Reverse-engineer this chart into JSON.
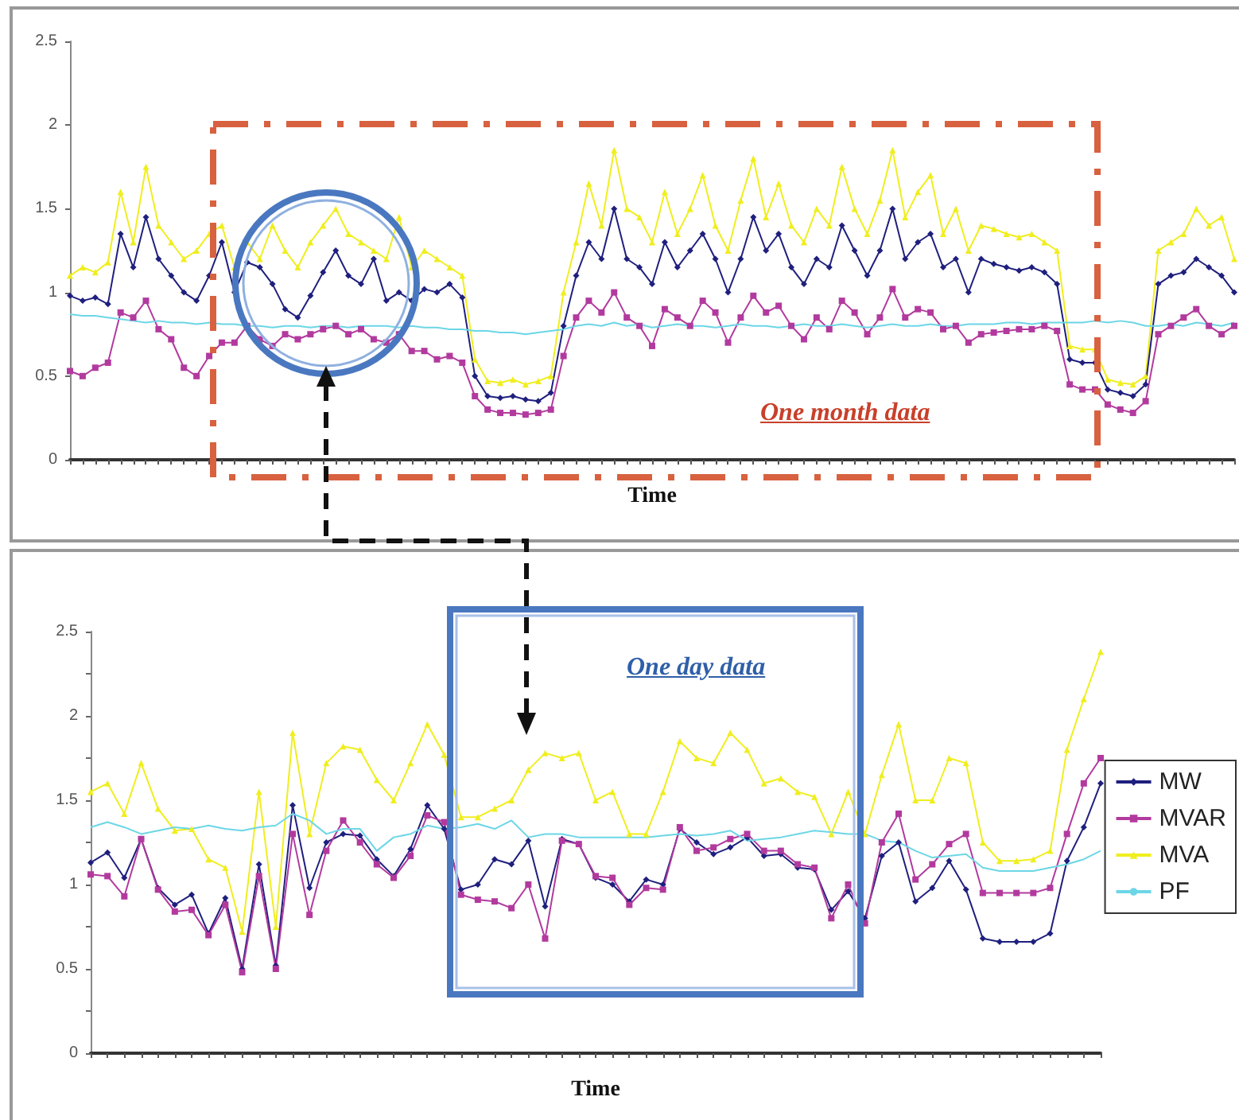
{
  "chart_data": [
    {
      "type": "line",
      "xlabel": "Time",
      "ylim": [
        0,
        2.5
      ],
      "yticks": [
        0,
        0.5,
        1,
        1.5,
        2,
        2.5
      ],
      "grid": false,
      "annotations": [
        "One month data"
      ],
      "categories": [
        null,
        null,
        null,
        null,
        null,
        null,
        null,
        null,
        null,
        null,
        null,
        null,
        null,
        null,
        null,
        null,
        null,
        null,
        null,
        null,
        null,
        null,
        null,
        null,
        null,
        null,
        null,
        null,
        null,
        null,
        null,
        null,
        null,
        null,
        null,
        null,
        null,
        null,
        null,
        null,
        null,
        null,
        null,
        null,
        null,
        null,
        null,
        null,
        null,
        null,
        null,
        null,
        null,
        null,
        null,
        null,
        null,
        null,
        null,
        null,
        null,
        null,
        null,
        null,
        null,
        null,
        null,
        null,
        null,
        null,
        null,
        null,
        null,
        null,
        null,
        null,
        null,
        null,
        null,
        null,
        null,
        null,
        null,
        null,
        null,
        null,
        null,
        null,
        null,
        null,
        null,
        null,
        null
      ],
      "series": [
        {
          "color": "#f0ee1e",
          "marker": "triangle",
          "values": [
            1.1,
            1.15,
            1.12,
            1.18,
            1.6,
            1.3,
            1.75,
            1.4,
            1.3,
            1.2,
            1.25,
            1.35,
            1.4,
            1.15,
            1.3,
            1.2,
            1.4,
            1.25,
            1.15,
            1.3,
            1.4,
            1.5,
            1.35,
            1.3,
            1.25,
            1.2,
            1.45,
            1.15,
            1.25,
            1.2,
            1.15,
            1.1,
            0.6,
            0.47,
            0.46,
            0.48,
            0.45,
            0.47,
            0.5,
            1.0,
            1.3,
            1.65,
            1.4,
            1.85,
            1.5,
            1.45,
            1.3,
            1.6,
            1.35,
            1.5,
            1.7,
            1.4,
            1.25,
            1.55,
            1.8,
            1.45,
            1.65,
            1.4,
            1.3,
            1.5,
            1.4,
            1.75,
            1.5,
            1.35,
            1.55,
            1.85,
            1.45,
            1.6,
            1.7,
            1.35,
            1.5,
            1.25,
            1.4,
            1.38,
            1.35,
            1.33,
            1.35,
            1.3,
            1.25,
            0.68,
            0.66,
            0.66,
            0.48,
            0.46,
            0.45,
            0.5,
            1.25,
            1.3,
            1.35,
            1.5,
            1.4,
            1.45,
            1.2
          ]
        },
        {
          "color": "#1f1f7e",
          "marker": "diamond",
          "values": [
            0.98,
            0.95,
            0.97,
            0.93,
            1.35,
            1.15,
            1.45,
            1.2,
            1.1,
            1.0,
            0.95,
            1.1,
            1.3,
            1.0,
            1.18,
            1.15,
            1.05,
            0.9,
            0.85,
            0.98,
            1.12,
            1.25,
            1.1,
            1.05,
            1.2,
            0.95,
            1.0,
            0.95,
            1.02,
            1.0,
            1.05,
            0.97,
            0.5,
            0.38,
            0.37,
            0.38,
            0.36,
            0.35,
            0.4,
            0.8,
            1.1,
            1.3,
            1.2,
            1.5,
            1.2,
            1.15,
            1.05,
            1.3,
            1.15,
            1.25,
            1.35,
            1.2,
            1.0,
            1.2,
            1.45,
            1.25,
            1.35,
            1.15,
            1.05,
            1.2,
            1.15,
            1.4,
            1.25,
            1.1,
            1.25,
            1.5,
            1.2,
            1.3,
            1.35,
            1.15,
            1.2,
            1.0,
            1.2,
            1.17,
            1.15,
            1.13,
            1.15,
            1.12,
            1.05,
            0.6,
            0.58,
            0.58,
            0.42,
            0.4,
            0.38,
            0.45,
            1.05,
            1.1,
            1.12,
            1.2,
            1.15,
            1.1,
            1.0
          ]
        },
        {
          "color": "#b23a9e",
          "marker": "square",
          "values": [
            0.53,
            0.5,
            0.55,
            0.58,
            0.88,
            0.85,
            0.95,
            0.78,
            0.72,
            0.55,
            0.5,
            0.62,
            0.7,
            0.7,
            0.8,
            0.72,
            0.68,
            0.75,
            0.72,
            0.75,
            0.78,
            0.8,
            0.75,
            0.78,
            0.72,
            0.7,
            0.75,
            0.65,
            0.65,
            0.6,
            0.62,
            0.58,
            0.38,
            0.3,
            0.28,
            0.28,
            0.27,
            0.28,
            0.3,
            0.62,
            0.85,
            0.95,
            0.88,
            1.0,
            0.85,
            0.8,
            0.68,
            0.9,
            0.85,
            0.8,
            0.95,
            0.88,
            0.7,
            0.85,
            0.98,
            0.88,
            0.92,
            0.8,
            0.72,
            0.85,
            0.78,
            0.95,
            0.88,
            0.75,
            0.85,
            1.02,
            0.85,
            0.9,
            0.88,
            0.78,
            0.8,
            0.7,
            0.75,
            0.76,
            0.77,
            0.78,
            0.78,
            0.8,
            0.77,
            0.45,
            0.42,
            0.42,
            0.33,
            0.3,
            0.28,
            0.35,
            0.75,
            0.8,
            0.85,
            0.9,
            0.8,
            0.75,
            0.8
          ]
        },
        {
          "color": "#6cd6e6",
          "marker": "none",
          "values": [
            0.87,
            0.86,
            0.86,
            0.85,
            0.84,
            0.83,
            0.82,
            0.83,
            0.82,
            0.82,
            0.81,
            0.82,
            0.81,
            0.81,
            0.8,
            0.8,
            0.79,
            0.8,
            0.8,
            0.79,
            0.8,
            0.8,
            0.79,
            0.8,
            0.8,
            0.8,
            0.79,
            0.8,
            0.79,
            0.79,
            0.78,
            0.78,
            0.77,
            0.77,
            0.76,
            0.76,
            0.75,
            0.76,
            0.77,
            0.78,
            0.8,
            0.81,
            0.8,
            0.82,
            0.8,
            0.81,
            0.79,
            0.8,
            0.81,
            0.8,
            0.8,
            0.79,
            0.8,
            0.81,
            0.8,
            0.8,
            0.79,
            0.8,
            0.81,
            0.8,
            0.8,
            0.81,
            0.8,
            0.79,
            0.8,
            0.81,
            0.8,
            0.8,
            0.81,
            0.8,
            0.8,
            0.81,
            0.81,
            0.81,
            0.82,
            0.82,
            0.81,
            0.82,
            0.82,
            0.82,
            0.82,
            0.83,
            0.82,
            0.83,
            0.82,
            0.8,
            0.8,
            0.81,
            0.8,
            0.82,
            0.81,
            0.8,
            0.82
          ]
        }
      ]
    },
    {
      "type": "line",
      "xlabel": "Time",
      "ylim": [
        0,
        2.5
      ],
      "yticks": [
        0,
        {
          "value": 0.25,
          "label": null
        },
        0.5,
        {
          "value": 0.75,
          "label": null
        },
        1,
        {
          "value": 1.25,
          "label": null
        },
        1.5,
        {
          "value": 1.75,
          "label": null
        },
        2,
        {
          "value": 2.25,
          "label": null
        },
        2.5
      ],
      "grid": false,
      "legend": "right",
      "annotations": [
        "One day data"
      ],
      "categories": [
        null,
        null,
        null,
        null,
        null,
        null,
        null,
        null,
        null,
        null,
        null,
        null,
        null,
        null,
        null,
        null,
        null,
        null,
        null,
        null,
        null,
        null,
        null,
        null,
        null,
        null,
        null,
        null,
        null,
        null,
        null,
        null,
        null,
        null,
        null,
        null,
        null,
        null,
        null,
        null,
        null,
        null,
        null,
        null,
        null,
        null,
        null,
        null,
        null,
        null,
        null,
        null,
        null,
        null,
        null,
        null,
        null,
        null,
        null,
        null,
        null
      ],
      "series": [
        {
          "name": "MW",
          "color": "#1f1f7e",
          "marker": "diamond",
          "values": [
            1.13,
            1.19,
            1.04,
            1.27,
            0.98,
            0.88,
            0.94,
            0.71,
            0.92,
            0.5,
            1.12,
            0.52,
            1.47,
            0.98,
            1.25,
            1.3,
            1.29,
            1.15,
            1.05,
            1.21,
            1.47,
            1.33,
            0.97,
            1.0,
            1.15,
            1.12,
            1.26,
            0.87,
            1.27,
            1.24,
            1.04,
            1.0,
            0.9,
            1.03,
            1.0,
            1.33,
            1.25,
            1.18,
            1.22,
            1.28,
            1.17,
            1.18,
            1.1,
            1.09,
            0.85,
            0.96,
            0.8,
            1.17,
            1.25,
            0.9,
            0.98,
            1.14,
            0.97,
            0.68,
            0.66,
            0.66,
            0.66,
            0.71,
            1.14,
            1.34,
            1.6
          ]
        },
        {
          "name": "MVAR",
          "color": "#b23a9e",
          "marker": "square",
          "values": [
            1.06,
            1.05,
            0.93,
            1.27,
            0.97,
            0.84,
            0.85,
            0.7,
            0.88,
            0.48,
            1.05,
            0.5,
            1.3,
            0.82,
            1.2,
            1.38,
            1.25,
            1.12,
            1.04,
            1.17,
            1.41,
            1.37,
            0.94,
            0.91,
            0.9,
            0.86,
            1.0,
            0.68,
            1.26,
            1.24,
            1.05,
            1.04,
            0.88,
            0.98,
            0.97,
            1.34,
            1.2,
            1.22,
            1.27,
            1.3,
            1.2,
            1.2,
            1.12,
            1.1,
            0.8,
            1.0,
            0.77,
            1.25,
            1.42,
            1.03,
            1.12,
            1.24,
            1.3,
            0.95,
            0.95,
            0.95,
            0.95,
            0.98,
            1.3,
            1.6,
            1.75
          ]
        },
        {
          "name": "MVA",
          "color": "#f0ee1e",
          "marker": "triangle",
          "values": [
            1.55,
            1.6,
            1.42,
            1.72,
            1.45,
            1.32,
            1.33,
            1.15,
            1.1,
            0.72,
            1.55,
            0.75,
            1.9,
            1.3,
            1.72,
            1.82,
            1.8,
            1.62,
            1.5,
            1.72,
            1.95,
            1.77,
            1.4,
            1.4,
            1.45,
            1.5,
            1.68,
            1.78,
            1.75,
            1.78,
            1.5,
            1.55,
            1.3,
            1.3,
            1.55,
            1.85,
            1.75,
            1.72,
            1.9,
            1.8,
            1.6,
            1.63,
            1.55,
            1.52,
            1.3,
            1.55,
            1.3,
            1.65,
            1.95,
            1.5,
            1.5,
            1.75,
            1.72,
            1.25,
            1.14,
            1.14,
            1.15,
            1.2,
            1.8,
            2.1,
            2.38
          ]
        },
        {
          "name": "PF",
          "color": "#6cd6e6",
          "marker": "none",
          "values": [
            1.34,
            1.37,
            1.34,
            1.3,
            1.32,
            1.34,
            1.33,
            1.35,
            1.33,
            1.32,
            1.34,
            1.35,
            1.42,
            1.38,
            1.3,
            1.33,
            1.33,
            1.2,
            1.28,
            1.3,
            1.35,
            1.33,
            1.34,
            1.36,
            1.33,
            1.38,
            1.28,
            1.3,
            1.3,
            1.28,
            1.28,
            1.28,
            1.28,
            1.28,
            1.29,
            1.3,
            1.29,
            1.3,
            1.32,
            1.26,
            1.27,
            1.28,
            1.3,
            1.32,
            1.31,
            1.3,
            1.3,
            1.26,
            1.25,
            1.2,
            1.16,
            1.17,
            1.18,
            1.1,
            1.08,
            1.08,
            1.08,
            1.1,
            1.12,
            1.15,
            1.2
          ]
        }
      ]
    }
  ]
}
